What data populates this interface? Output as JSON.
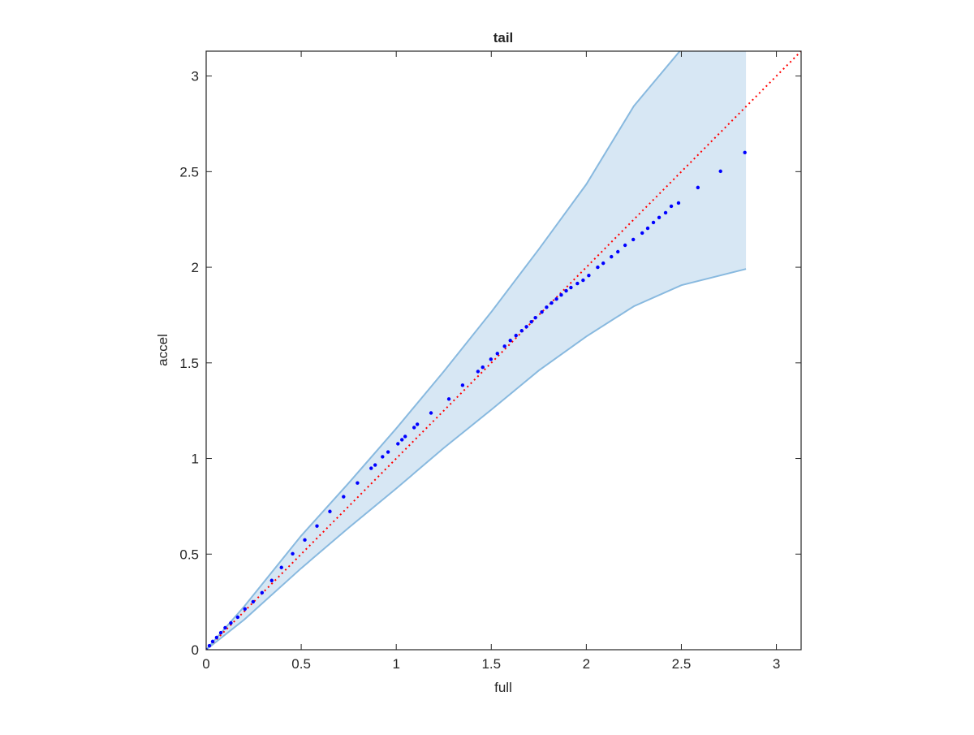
{
  "chart_data": {
    "type": "scatter",
    "title": "tail",
    "xlabel": "full",
    "ylabel": "accel",
    "xlim": [
      0,
      3.13
    ],
    "ylim": [
      0,
      3.13
    ],
    "xticks": [
      0,
      0.5,
      1,
      1.5,
      2,
      2.5,
      3
    ],
    "yticks": [
      0,
      0.5,
      1,
      1.5,
      2,
      2.5,
      3
    ],
    "color": "#0000ff",
    "x": [
      0,
      0.017,
      0.034,
      0.055,
      0.077,
      0.1,
      0.13,
      0.166,
      0.204,
      0.247,
      0.294,
      0.345,
      0.396,
      0.455,
      0.519,
      0.583,
      0.651,
      0.723,
      0.796,
      0.868,
      0.889,
      0.928,
      0.957,
      1.009,
      1.03,
      1.047,
      1.094,
      1.111,
      1.183,
      1.277,
      1.349,
      1.43,
      1.455,
      1.498,
      1.532,
      1.57,
      1.6,
      1.63,
      1.66,
      1.685,
      1.711,
      1.732,
      1.766,
      1.791,
      1.817,
      1.843,
      1.868,
      1.894,
      1.919,
      1.953,
      1.983,
      2.013,
      2.06,
      2.089,
      2.132,
      2.166,
      2.204,
      2.247,
      2.294,
      2.323,
      2.353,
      2.383,
      2.417,
      2.447,
      2.485,
      2.587,
      2.706,
      2.834
    ],
    "values": [
      0,
      0.021,
      0.043,
      0.064,
      0.089,
      0.115,
      0.14,
      0.17,
      0.213,
      0.251,
      0.298,
      0.362,
      0.43,
      0.502,
      0.574,
      0.647,
      0.723,
      0.8,
      0.872,
      0.949,
      0.966,
      1.009,
      1.034,
      1.077,
      1.098,
      1.115,
      1.162,
      1.179,
      1.238,
      1.311,
      1.383,
      1.455,
      1.477,
      1.519,
      1.549,
      1.587,
      1.617,
      1.643,
      1.668,
      1.689,
      1.715,
      1.736,
      1.766,
      1.791,
      1.813,
      1.834,
      1.855,
      1.877,
      1.894,
      1.915,
      1.932,
      1.957,
      2.0,
      2.021,
      2.055,
      2.081,
      2.115,
      2.145,
      2.179,
      2.204,
      2.234,
      2.26,
      2.285,
      2.319,
      2.336,
      2.417,
      2.502,
      2.6
    ],
    "band": {
      "x": [
        0,
        0.2,
        0.5,
        0.75,
        1,
        1.25,
        1.5,
        1.75,
        2,
        2.25,
        2.5,
        2.84
      ],
      "upper": [
        0,
        0.226,
        0.596,
        0.872,
        1.157,
        1.455,
        1.766,
        2.094,
        2.434,
        2.843,
        3.14,
        3.6
      ],
      "lower": [
        0,
        0.157,
        0.426,
        0.638,
        0.843,
        1.055,
        1.255,
        1.46,
        1.638,
        1.796,
        1.906,
        1.991
      ],
      "color": "#d7e7f4",
      "edge_color": "#88b9df"
    },
    "reference_line": {
      "x": [
        0,
        3.13
      ],
      "values": [
        0,
        3.13
      ],
      "color": "#ff0000",
      "style": "dotted"
    }
  }
}
